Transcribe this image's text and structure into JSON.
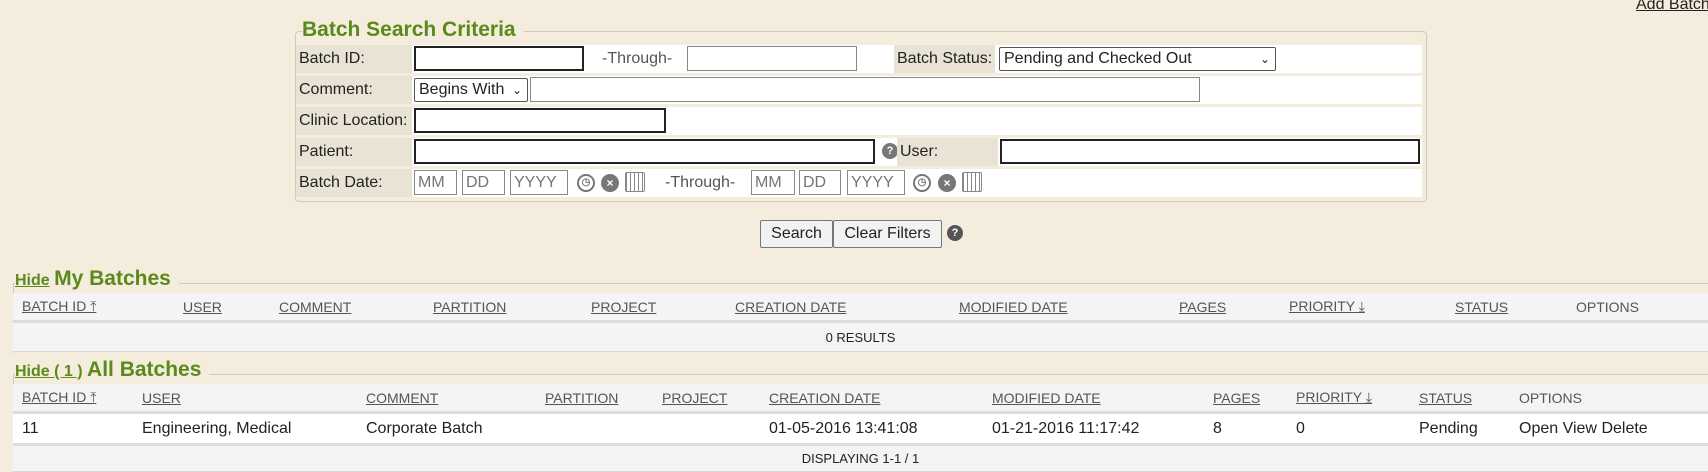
{
  "header": {
    "add_batch": "Add Batch"
  },
  "criteria": {
    "title": "Batch Search Criteria",
    "batch_id_label": "Batch ID:",
    "through": "-Through-",
    "batch_status_label": "Batch Status:",
    "batch_status_value": "Pending and Checked Out",
    "comment_label": "Comment:",
    "comment_mode": "Begins With",
    "clinic_label": "Clinic Location:",
    "patient_label": "Patient:",
    "user_label": "User:",
    "batch_date_label": "Batch Date:",
    "mm": "MM",
    "dd": "DD",
    "yyyy": "YYYY"
  },
  "actions": {
    "search": "Search",
    "clear": "Clear Filters"
  },
  "my_batches": {
    "hide": "Hide",
    "title": "My Batches",
    "columns": [
      "BATCH ID",
      "USER",
      "COMMENT",
      "PARTITION",
      "PROJECT",
      "CREATION DATE",
      "MODIFIED DATE",
      "PAGES",
      "PRIORITY",
      "STATUS",
      "OPTIONS"
    ],
    "footer": "0 RESULTS"
  },
  "all_batches": {
    "hide": "Hide",
    "count": "( 1 )",
    "title": "All Batches",
    "columns": [
      "BATCH ID",
      "USER",
      "COMMENT",
      "PARTITION",
      "PROJECT",
      "CREATION DATE",
      "MODIFIED DATE",
      "PAGES",
      "PRIORITY",
      "STATUS",
      "OPTIONS"
    ],
    "rows": [
      {
        "batch_id": "11",
        "user": "Engineering, Medical",
        "comment": "Corporate Batch",
        "partition": "",
        "project": "",
        "creation_date": "01-05-2016 13:41:08",
        "modified_date": "01-21-2016 11:17:42",
        "pages": "8",
        "priority": "0",
        "status": "Pending",
        "options": [
          "Open",
          "View",
          "Delete"
        ]
      }
    ],
    "footer": "DISPLAYING 1-1 / 1"
  },
  "colors": {
    "accent": "#5b8a1c",
    "background": "#f4ecdd"
  }
}
